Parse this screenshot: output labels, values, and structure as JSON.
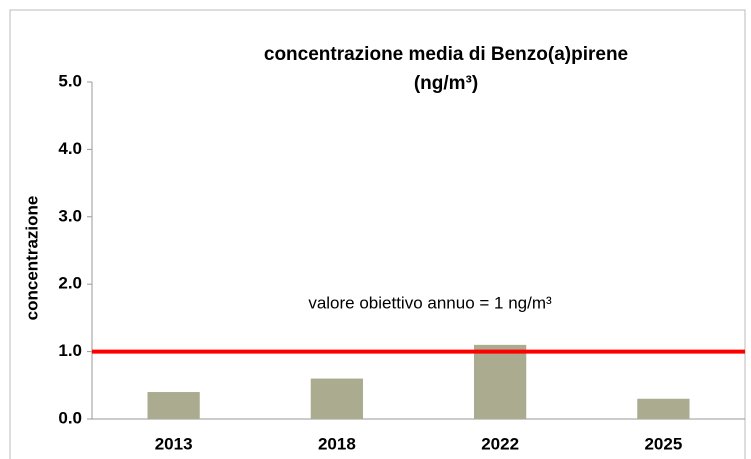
{
  "chart_data": {
    "type": "bar",
    "title": [
      "concentrazione media di Benzo(a)pirene",
      "(ng/m³)"
    ],
    "y_label": "concentrazione",
    "categories": [
      "2013",
      "2018",
      "2022",
      "2025"
    ],
    "values": [
      0.4,
      0.6,
      1.1,
      0.3
    ],
    "color": "#abab8f",
    "ylim": [
      0,
      5
    ],
    "yticks": [
      {
        "value": 0,
        "label": "0.0"
      },
      {
        "value": 1,
        "label": "1.0"
      },
      {
        "value": 2,
        "label": "2.0"
      },
      {
        "value": 3,
        "label": "3.0"
      },
      {
        "value": 4,
        "label": "4.0"
      },
      {
        "value": 5,
        "label": "5.0"
      }
    ],
    "reference_line": {
      "value": 1,
      "color": "#ff0000",
      "label": "valore obiettivo annuo = 1 ng/m³"
    },
    "grid": false
  }
}
